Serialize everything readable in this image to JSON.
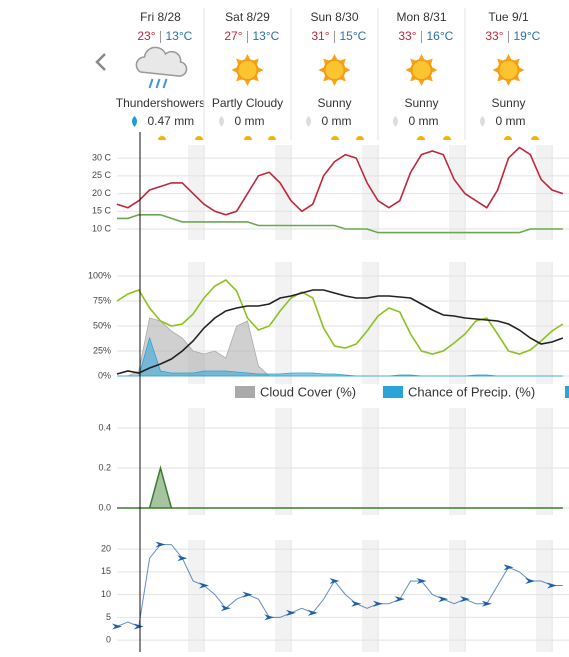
{
  "days": [
    {
      "date": "Fri 8/28",
      "high": "23°",
      "low": "13°C",
      "condition": "Thundershowers",
      "precip": "0.47 mm"
    },
    {
      "date": "Sat 8/29",
      "high": "27°",
      "low": "13°C",
      "condition": "Partly Cloudy",
      "precip": "0 mm"
    },
    {
      "date": "Sun 8/30",
      "high": "31°",
      "low": "15°C",
      "condition": "Sunny",
      "precip": "0 mm"
    },
    {
      "date": "Mon 8/31",
      "high": "33°",
      "low": "16°C",
      "condition": "Sunny",
      "precip": "0 mm"
    },
    {
      "date": "Tue 9/1",
      "high": "33°",
      "low": "19°C",
      "condition": "Sunny",
      "precip": "0 mm"
    }
  ],
  "chart_data": [
    {
      "type": "line",
      "ylim": [
        6.9,
        33.7
      ],
      "yticks": [
        {
          "value": 30,
          "label": "30 C"
        },
        {
          "value": 25,
          "label": "25 C"
        },
        {
          "value": 20,
          "label": "20 C"
        },
        {
          "value": 15,
          "label": "15 C"
        },
        {
          "value": 10,
          "label": "10 C"
        }
      ],
      "grid": true,
      "series": [
        {
          "color": "#6aa84f",
          "values": [
            13,
            13,
            14,
            14,
            14,
            13,
            12,
            12,
            12,
            12,
            12,
            12,
            12,
            11,
            11,
            11,
            11,
            11,
            11,
            11,
            11,
            10,
            10,
            10,
            9,
            9,
            9,
            9,
            9,
            9,
            9,
            9,
            9,
            9,
            9,
            9,
            9,
            9,
            10,
            10,
            10,
            10
          ]
        },
        {
          "color": "#c0283c",
          "values": [
            17,
            16,
            18,
            21,
            22,
            23,
            23,
            20,
            17,
            15,
            14,
            15,
            20,
            25,
            26,
            23,
            18,
            15,
            17,
            25,
            29,
            31,
            30,
            23,
            18,
            16,
            18,
            26,
            31,
            32,
            31,
            24,
            20,
            18,
            16,
            21,
            30,
            33,
            31,
            24,
            21,
            20
          ]
        }
      ]
    },
    {
      "type": "line",
      "ylim": [
        -8,
        114
      ],
      "yticks": [
        {
          "value": 100,
          "label": "100%"
        },
        {
          "value": 75,
          "label": "75%"
        },
        {
          "value": 50,
          "label": "50%"
        },
        {
          "value": 25,
          "label": "25%"
        },
        {
          "value": 0,
          "label": "0%"
        }
      ],
      "grid": true,
      "legend": "bottom",
      "series": [
        {
          "name": "Cloud Cover (%)",
          "color": "#aaaaaa",
          "style": "area",
          "values": [
            0,
            0,
            5,
            58,
            55,
            45,
            38,
            25,
            22,
            25,
            18,
            50,
            55,
            10,
            0,
            0,
            0,
            0,
            0,
            0,
            0,
            0,
            0,
            0,
            0,
            0,
            0,
            0,
            0,
            0,
            0,
            0,
            0,
            0,
            0,
            0,
            0,
            0,
            0,
            0,
            0,
            0
          ]
        },
        {
          "name": "Chance of Precip. (%)",
          "color": "#2aa3d8",
          "style": "area",
          "values": [
            0,
            0,
            0,
            38,
            5,
            3,
            3,
            3,
            5,
            5,
            5,
            4,
            3,
            2,
            2,
            2,
            3,
            3,
            3,
            2,
            2,
            1,
            0,
            0,
            0,
            0,
            1,
            1,
            0,
            0,
            0,
            0,
            0,
            1,
            1,
            0,
            0,
            0,
            0,
            0,
            0,
            0
          ]
        },
        {
          "color": "#8cc21e",
          "values": [
            75,
            82,
            86,
            68,
            55,
            50,
            52,
            62,
            78,
            90,
            96,
            85,
            58,
            46,
            50,
            65,
            78,
            84,
            78,
            48,
            30,
            28,
            32,
            45,
            60,
            68,
            64,
            42,
            25,
            22,
            25,
            33,
            42,
            55,
            58,
            42,
            25,
            22,
            26,
            35,
            45,
            52
          ]
        },
        {
          "color": "#222222",
          "values": [
            2,
            5,
            3,
            8,
            12,
            17,
            25,
            35,
            48,
            58,
            65,
            68,
            70,
            70,
            72,
            78,
            80,
            83,
            86,
            86,
            83,
            80,
            78,
            78,
            80,
            80,
            79,
            78,
            72,
            66,
            61,
            60,
            58,
            57,
            56,
            55,
            52,
            46,
            38,
            32,
            34,
            38
          ]
        }
      ]
    },
    {
      "type": "area",
      "ylim": [
        -0.035,
        0.5
      ],
      "yticks": [
        0.4,
        0.2,
        {
          "value": 0,
          "label": "0.0"
        }
      ],
      "grid": true,
      "series": [
        {
          "color": "#3a7d2a",
          "style": "area",
          "values": [
            0,
            0,
            0,
            0,
            0.2,
            0,
            0,
            0,
            0,
            0,
            0,
            0,
            0,
            0,
            0,
            0,
            0,
            0,
            0,
            0,
            0,
            0,
            0,
            0,
            0,
            0,
            0,
            0,
            0,
            0,
            0,
            0,
            0,
            0,
            0,
            0,
            0,
            0,
            0,
            0,
            0,
            0
          ]
        }
      ]
    },
    {
      "type": "line",
      "ylim": [
        -2.6,
        22
      ],
      "yticks": [
        20,
        15,
        10,
        5,
        0
      ],
      "grid": true,
      "markers": true,
      "series": [
        {
          "color": "#1f5fa8",
          "values": [
            3,
            4,
            3,
            18,
            21,
            21,
            18,
            13,
            12,
            10,
            7,
            9,
            10,
            9,
            5,
            5,
            6,
            7,
            6,
            9,
            13,
            10,
            8,
            7,
            8,
            8,
            9,
            13,
            13,
            10,
            9,
            8,
            9,
            8,
            8,
            12,
            16,
            15,
            13,
            13,
            12,
            12
          ]
        }
      ]
    }
  ]
}
